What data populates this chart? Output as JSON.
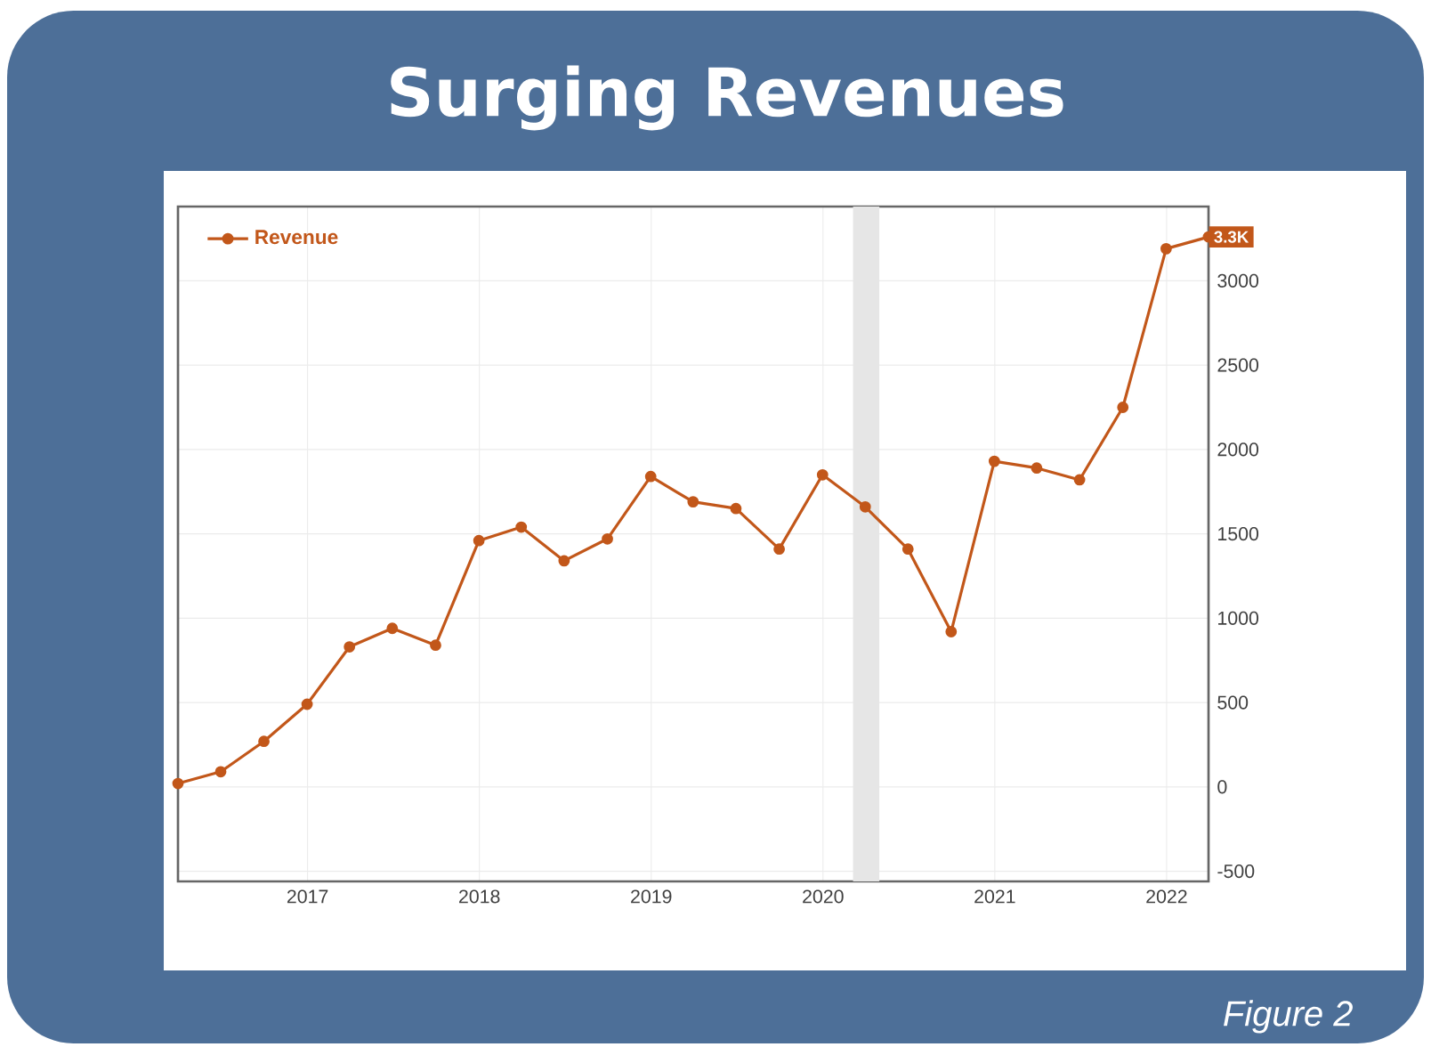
{
  "chart_data": {
    "type": "line",
    "title": "Surging Revenues",
    "x": [
      "2016-03-31",
      "2016-06-30",
      "2016-09-30",
      "2016-12-31",
      "2017-03-31",
      "2017-06-30",
      "2017-09-30",
      "2017-12-31",
      "2018-03-31",
      "2018-06-30",
      "2018-09-30",
      "2018-12-31",
      "2019-03-31",
      "2019-06-30",
      "2019-09-30",
      "2019-12-31",
      "2020-03-31",
      "2020-06-30",
      "2020-09-30",
      "2020-12-31",
      "2021-03-31",
      "2021-06-30",
      "2021-09-30",
      "2021-12-31",
      "2022-03-31"
    ],
    "series": [
      {
        "name": "Revenue",
        "color": "#c2571a",
        "values": [
          20,
          90,
          270,
          490,
          830,
          940,
          840,
          1460,
          1540,
          1340,
          1470,
          1840,
          1690,
          1650,
          1410,
          1850,
          1660,
          1410,
          920,
          1930,
          1890,
          1820,
          2250,
          3190,
          3260
        ]
      }
    ],
    "xlim": [
      "2016-03-31",
      "2022-03-31"
    ],
    "xticks": [
      "2017",
      "2018",
      "2019",
      "2020",
      "2021",
      "2022"
    ],
    "ylim": [
      -560,
      3440
    ],
    "yticks": [
      -500,
      0,
      500,
      1000,
      1500,
      2000,
      2500,
      3000
    ],
    "bands": [
      {
        "axis": "x",
        "from": "2020-03-05",
        "to": "2020-04-30",
        "color": "#e6e6e6"
      }
    ],
    "annotations": [
      {
        "text": "3.3K",
        "x": "2022-03-31",
        "y": 3260
      },
      "Figure 2"
    ],
    "grid": true,
    "legend": "top left",
    "marker": "circle",
    "line_style": "solid"
  }
}
